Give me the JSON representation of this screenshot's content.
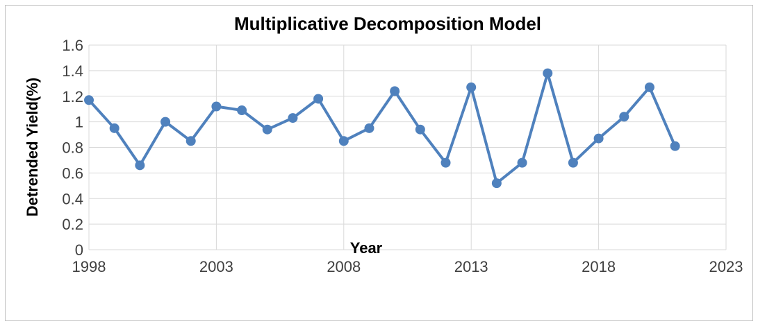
{
  "chart_data": {
    "type": "line",
    "title": "Multiplicative Decomposition Model",
    "xlabel": "Year",
    "ylabel": "Detrended Yield(%)",
    "xlim": [
      1998,
      2023
    ],
    "ylim": [
      0,
      1.6
    ],
    "x_ticks": [
      "1998",
      "2003",
      "2008",
      "2013",
      "2018",
      "2023"
    ],
    "x_tick_values": [
      1998,
      2003,
      2008,
      2013,
      2018,
      2023
    ],
    "y_ticks": [
      "0",
      "0.2",
      "0.4",
      "0.6",
      "0.8",
      "1",
      "1.2",
      "1.4",
      "1.6"
    ],
    "y_tick_values": [
      0,
      0.2,
      0.4,
      0.6,
      0.8,
      1.0,
      1.2,
      1.4,
      1.6
    ],
    "grid": true,
    "legend": "none",
    "color": "#4f81bd",
    "series": [
      {
        "x": [
          1998,
          1999,
          2000,
          2001,
          2002,
          2003,
          2004,
          2005,
          2006,
          2007,
          2008,
          2009,
          2010,
          2011,
          2012,
          2013,
          2014,
          2015,
          2016,
          2017,
          2018,
          2019,
          2020,
          2021
        ],
        "values": [
          1.17,
          0.95,
          0.66,
          1.0,
          0.85,
          1.12,
          1.09,
          0.94,
          1.03,
          1.18,
          0.85,
          0.95,
          1.24,
          0.94,
          0.68,
          1.27,
          0.52,
          0.68,
          1.38,
          0.68,
          0.87,
          1.04,
          1.27,
          0.81
        ]
      }
    ]
  }
}
